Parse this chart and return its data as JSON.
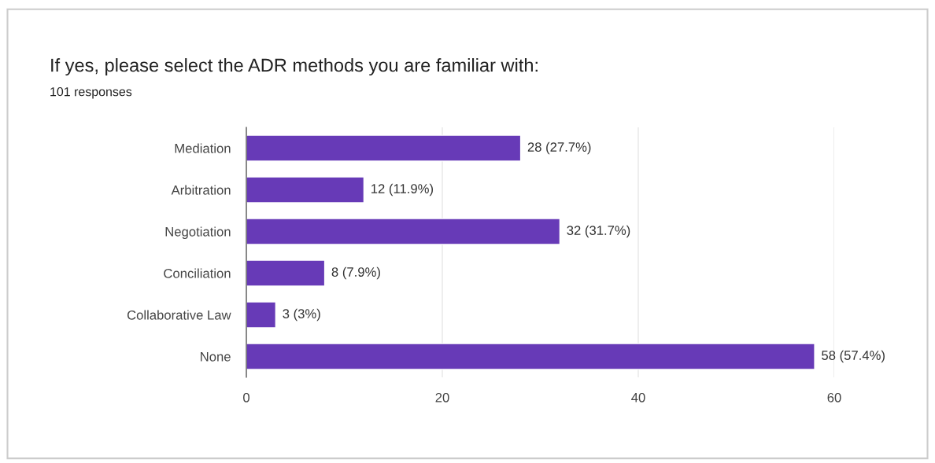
{
  "chart_data": {
    "type": "bar",
    "orientation": "horizontal",
    "title": "If yes, please select the ADR methods you are familiar with:",
    "subtitle": "101 responses",
    "categories": [
      "Mediation",
      "Arbitration",
      "Negotiation",
      "Conciliation",
      "Collaborative Law",
      "None"
    ],
    "values": [
      28,
      12,
      32,
      8,
      3,
      58
    ],
    "value_labels": [
      "28 (27.7%)",
      "12 (11.9%)",
      "32 (31.7%)",
      "8 (7.9%)",
      "3 (3%)",
      "58 (57.4%)"
    ],
    "color": "#673ab7",
    "xlim": [
      0,
      60
    ],
    "xticks": [
      0,
      20,
      40,
      60
    ],
    "grid": "x"
  }
}
